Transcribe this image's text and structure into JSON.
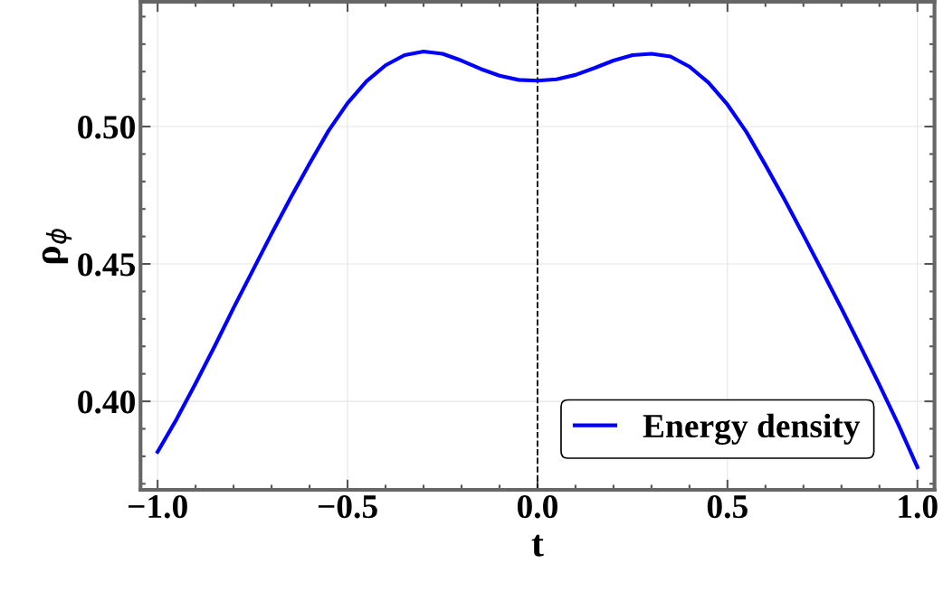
{
  "chart_data": {
    "type": "line",
    "xlabel": "t",
    "ylabel": "ρ$_{ϕ}$",
    "x": [
      -1.0,
      -0.95,
      -0.9,
      -0.85,
      -0.8,
      -0.75,
      -0.7,
      -0.65,
      -0.6,
      -0.55,
      -0.5,
      -0.45,
      -0.4,
      -0.35,
      -0.3,
      -0.25,
      -0.2,
      -0.15,
      -0.1,
      -0.05,
      0,
      0.05,
      0.1,
      0.15,
      0.2,
      0.25,
      0.3,
      0.35,
      0.4,
      0.45,
      0.5,
      0.55,
      0.6,
      0.65,
      0.7,
      0.75,
      0.8,
      0.85,
      0.9,
      0.95,
      1.0
    ],
    "series": [
      {
        "name": "Energy density",
        "color": "#0000ff",
        "values": [
          0.3816,
          0.3935,
          0.4065,
          0.42,
          0.434,
          0.4475,
          0.461,
          0.474,
          0.4865,
          0.4985,
          0.5085,
          0.5165,
          0.5223,
          0.526,
          0.5273,
          0.5265,
          0.524,
          0.521,
          0.5185,
          0.517,
          0.5167,
          0.5172,
          0.5188,
          0.5213,
          0.524,
          0.526,
          0.5265,
          0.5255,
          0.5218,
          0.516,
          0.508,
          0.498,
          0.486,
          0.4735,
          0.4605,
          0.4472,
          0.4338,
          0.42,
          0.406,
          0.3915,
          0.376
        ]
      }
    ],
    "xlim": [
      -1.045,
      1.045
    ],
    "ylim": [
      0.3678,
      0.5454
    ],
    "xticks": [
      {
        "value": -1.0,
        "label": "−1.0"
      },
      {
        "value": -0.5,
        "label": "−0.5"
      },
      {
        "value": 0.0,
        "label": "0.0"
      },
      {
        "value": 0.5,
        "label": "0.5"
      },
      {
        "value": 1.0,
        "label": "1.0"
      }
    ],
    "yticks": [
      {
        "value": 0.4,
        "label": "0.40"
      },
      {
        "value": 0.45,
        "label": "0.45"
      },
      {
        "value": 0.5,
        "label": "0.50"
      }
    ],
    "ref_lines": [
      {
        "axis": "x",
        "value": 0,
        "label": null,
        "color": "#000000",
        "line_style": "dashed"
      }
    ],
    "grid": true,
    "legend": "bottom right",
    "marker": "none",
    "line_style": "solid"
  }
}
